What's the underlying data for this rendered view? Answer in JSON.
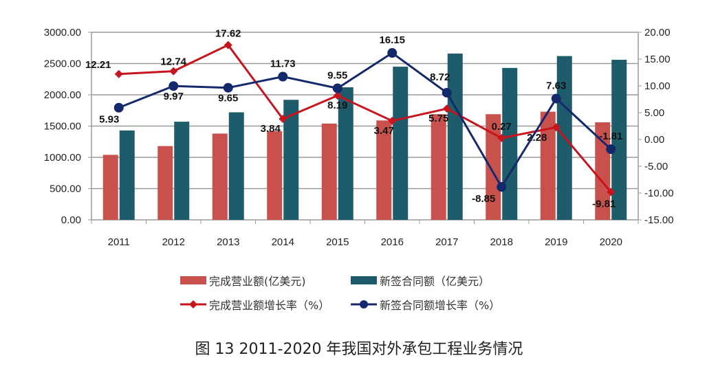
{
  "chart_data": {
    "type": "bar",
    "title": "图 13 2011-2020 年我国对外承包工程业务情况",
    "categories": [
      "2011",
      "2012",
      "2013",
      "2014",
      "2015",
      "2016",
      "2017",
      "2018",
      "2019",
      "2020"
    ],
    "y_left": {
      "range": [
        0,
        3000
      ],
      "ticks": [
        "0.00",
        "500.00",
        "1000.00",
        "1500.00",
        "2000.00",
        "2500.00",
        "3000.00"
      ]
    },
    "y_right": {
      "range": [
        -15,
        20
      ],
      "ticks": [
        "-15.00",
        "-10.00",
        "-5.00",
        "0.00",
        "5.00",
        "10.00",
        "15.00",
        "20.00"
      ]
    },
    "grid": true,
    "legend_placement": "bottom",
    "series": [
      {
        "name": "完成营业额(亿美元)",
        "type": "bar",
        "axis": "left",
        "color": "#c9514d",
        "values": [
          1040,
          1180,
          1380,
          1420,
          1540,
          1590,
          1690,
          1690,
          1730,
          1560
        ]
      },
      {
        "name": "新签合同额（亿美元）",
        "type": "bar",
        "axis": "left",
        "color": "#1f5c6b",
        "values": [
          1430,
          1570,
          1720,
          1920,
          2120,
          2450,
          2660,
          2430,
          2620,
          2560
        ]
      },
      {
        "name": "完成营业额增长率（%）",
        "type": "line",
        "axis": "right",
        "color": "#c8141c",
        "marker": "diamond",
        "values": [
          12.21,
          12.74,
          17.62,
          3.84,
          8.19,
          3.47,
          5.75,
          0.27,
          2.28,
          -9.81
        ],
        "labels": [
          "12.21",
          "12.74",
          "17.62",
          "3.84",
          "8.19",
          "3.47",
          "5.75",
          "0.27",
          "2.28",
          "-9.81"
        ]
      },
      {
        "name": "新签合同额增长率（%）",
        "type": "line",
        "axis": "right",
        "color": "#14296b",
        "marker": "circle",
        "values": [
          5.93,
          9.97,
          9.65,
          11.73,
          9.55,
          16.15,
          8.72,
          -8.85,
          7.63,
          -1.81
        ],
        "labels": [
          "5.93",
          "9.97",
          "9.65",
          "11.73",
          "9.55",
          "16.15",
          "8.72",
          "-8.85",
          "7.63",
          "-1.81"
        ]
      }
    ]
  }
}
